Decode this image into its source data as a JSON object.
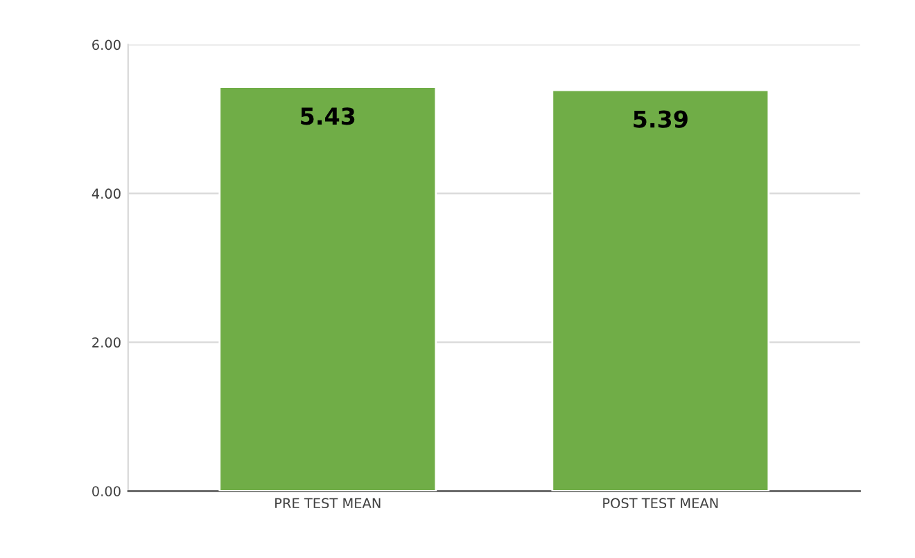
{
  "chart_data": {
    "type": "bar",
    "categories": [
      "PRE TEST MEAN",
      "POST TEST MEAN"
    ],
    "values": [
      5.43,
      5.39
    ],
    "color": "#70ad47",
    "ylim": [
      0,
      6
    ],
    "yticks": [
      {
        "value": 0,
        "label": "0.00"
      },
      {
        "value": 2,
        "label": "2.00"
      },
      {
        "value": 4,
        "label": "4.00"
      },
      {
        "value": 6,
        "label": "6.00"
      }
    ],
    "grid": "y",
    "data_labels": true
  }
}
